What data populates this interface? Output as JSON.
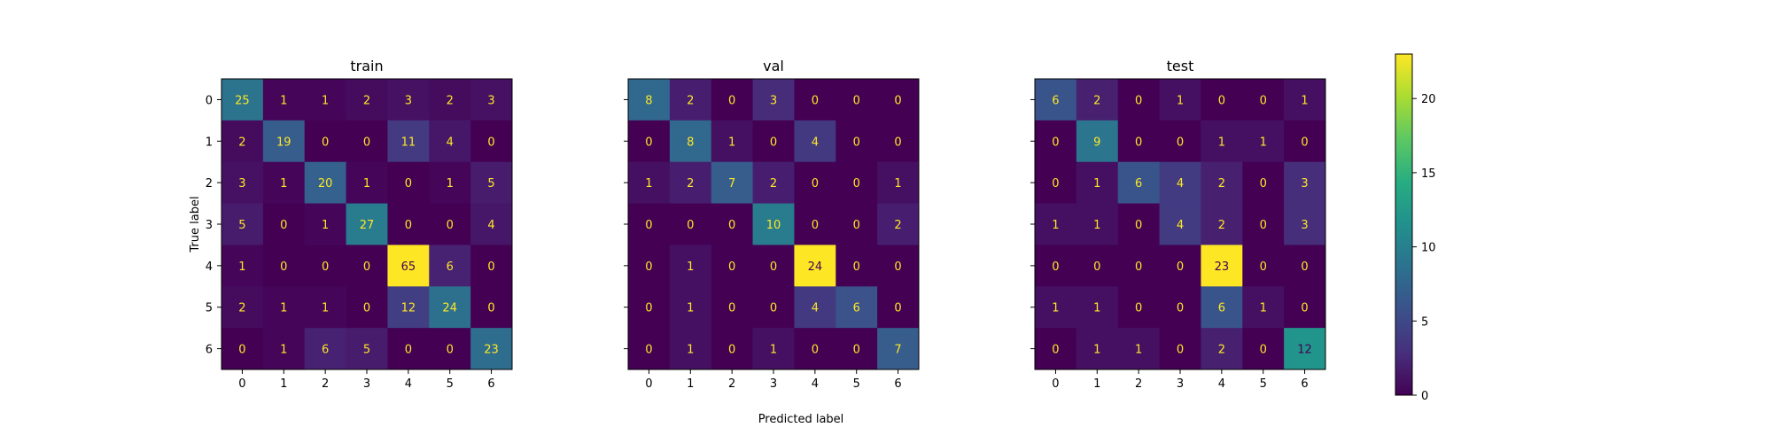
{
  "chart_data": [
    {
      "type": "heatmap",
      "title": "train",
      "xlabel": "",
      "ylabel": "True label",
      "x_ticks": [
        "0",
        "1",
        "2",
        "3",
        "4",
        "5",
        "6"
      ],
      "y_ticks": [
        "0",
        "1",
        "2",
        "3",
        "4",
        "5",
        "6"
      ],
      "matrix": [
        [
          25,
          1,
          1,
          2,
          3,
          2,
          3
        ],
        [
          2,
          19,
          0,
          0,
          11,
          4,
          0
        ],
        [
          3,
          1,
          20,
          1,
          0,
          1,
          5
        ],
        [
          5,
          0,
          1,
          27,
          0,
          0,
          4
        ],
        [
          1,
          0,
          0,
          0,
          65,
          6,
          0
        ],
        [
          2,
          1,
          1,
          0,
          12,
          24,
          0
        ],
        [
          0,
          1,
          6,
          5,
          0,
          0,
          23
        ]
      ],
      "vmin": 0,
      "vmax": 65
    },
    {
      "type": "heatmap",
      "title": "val",
      "xlabel": "Predicted label",
      "ylabel": "",
      "x_ticks": [
        "0",
        "1",
        "2",
        "3",
        "4",
        "5",
        "6"
      ],
      "y_ticks": [
        "0",
        "1",
        "2",
        "3",
        "4",
        "5",
        "6"
      ],
      "matrix": [
        [
          8,
          2,
          0,
          3,
          0,
          0,
          0
        ],
        [
          0,
          8,
          1,
          0,
          4,
          0,
          0
        ],
        [
          1,
          2,
          7,
          2,
          0,
          0,
          1
        ],
        [
          0,
          0,
          0,
          10,
          0,
          0,
          2
        ],
        [
          0,
          1,
          0,
          0,
          24,
          0,
          0
        ],
        [
          0,
          1,
          0,
          0,
          4,
          6,
          0
        ],
        [
          0,
          1,
          0,
          1,
          0,
          0,
          7
        ]
      ],
      "vmin": 0,
      "vmax": 24
    },
    {
      "type": "heatmap",
      "title": "test",
      "xlabel": "",
      "ylabel": "",
      "x_ticks": [
        "0",
        "1",
        "2",
        "3",
        "4",
        "5",
        "6"
      ],
      "y_ticks": [
        "0",
        "1",
        "2",
        "3",
        "4",
        "5",
        "6"
      ],
      "matrix": [
        [
          6,
          2,
          0,
          1,
          0,
          0,
          1
        ],
        [
          0,
          9,
          0,
          0,
          1,
          1,
          0
        ],
        [
          0,
          1,
          6,
          4,
          2,
          0,
          3
        ],
        [
          1,
          1,
          0,
          4,
          2,
          0,
          3
        ],
        [
          0,
          0,
          0,
          0,
          23,
          0,
          0
        ],
        [
          1,
          1,
          0,
          0,
          6,
          1,
          0
        ],
        [
          0,
          1,
          1,
          0,
          2,
          0,
          12
        ]
      ],
      "vmin": 0,
      "vmax": 23
    }
  ],
  "colorbar": {
    "ticks": [
      "0",
      "5",
      "10",
      "15",
      "20"
    ],
    "tick_values": [
      0,
      5,
      10,
      15,
      20
    ],
    "min": 0,
    "max": 23
  },
  "colors": {
    "text_dark": "#440154",
    "text_light": "#fde725",
    "axis": "#000000"
  }
}
